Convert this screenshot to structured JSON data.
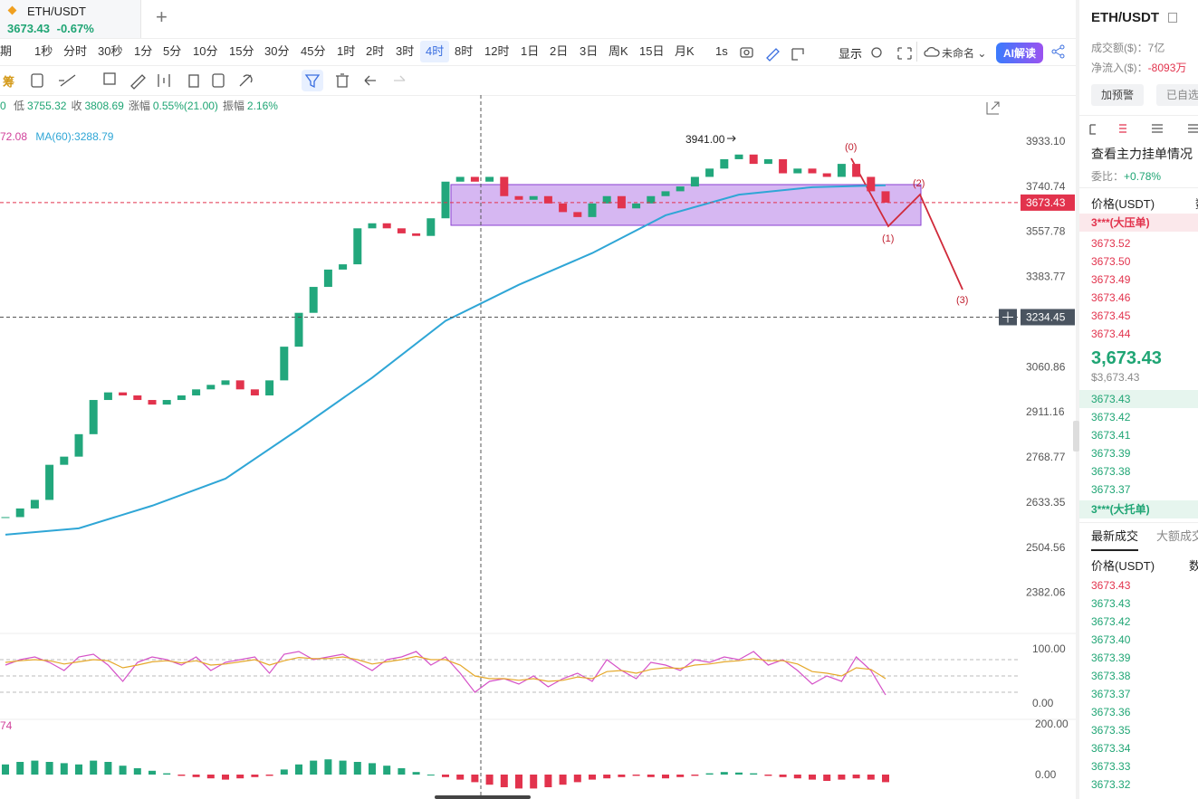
{
  "tab": {
    "symbol": "ETH/USDT",
    "price": "3673.43",
    "change": "-0.67%"
  },
  "intervals": [
    {
      "label": "期"
    },
    {
      "label": "1秒"
    },
    {
      "label": "分时"
    },
    {
      "label": "30秒"
    },
    {
      "label": "1分"
    },
    {
      "label": "5分"
    },
    {
      "label": "10分"
    },
    {
      "label": "15分"
    },
    {
      "label": "30分"
    },
    {
      "label": "45分"
    },
    {
      "label": "1时"
    },
    {
      "label": "2时"
    },
    {
      "label": "3时"
    },
    {
      "label": "4时",
      "selected": true
    },
    {
      "label": "8时"
    },
    {
      "label": "12时"
    },
    {
      "label": "1日"
    },
    {
      "label": "2日"
    },
    {
      "label": "3日"
    },
    {
      "label": "周K"
    },
    {
      "label": "15日"
    },
    {
      "label": "月K"
    },
    {
      "label": "1s"
    }
  ],
  "toolbar": {
    "display": "显示",
    "layout_name": "未命名",
    "ai": "AI解读",
    "chip": "筹"
  },
  "info": {
    "lead": "0",
    "items": [
      {
        "label": "低",
        "value": "3755.32"
      },
      {
        "label": "收",
        "value": "3808.69"
      },
      {
        "label": "涨幅",
        "value": "0.55%(21.00)"
      },
      {
        "label": "振幅",
        "value": "2.16%"
      }
    ],
    "ma_legend": [
      "72.08",
      "MA(60):3288.79"
    ]
  },
  "chart_data": [
    {
      "type": "candlestick",
      "log_scale": true,
      "ylim": [
        2276,
        4140
      ],
      "yticks": [
        {
          "value": 3933.1,
          "label": "3933.10"
        },
        3740.74,
        3557.78,
        3383.77,
        3060.86,
        2911.16,
        2768.77,
        2633.35,
        2504.56,
        2382.06
      ],
      "closes": [
        2590,
        2615,
        2640,
        2745,
        2770,
        2840,
        2950,
        2975,
        2965,
        2950,
        2935,
        2950,
        2965,
        2985,
        3000,
        3015,
        2985,
        2965,
        3015,
        3130,
        3250,
        3345,
        3410,
        3430,
        3570,
        3590,
        3570,
        3550,
        3540,
        3610,
        3760,
        3780,
        3760,
        3780,
        3700,
        3685,
        3700,
        3670,
        3635,
        3615,
        3670,
        3700,
        3650,
        3670,
        3700,
        3720,
        3740,
        3780,
        3815,
        3855,
        3875,
        3835,
        3855,
        3795,
        3815,
        3795,
        3780,
        3835,
        3780,
        3720,
        3673.43
      ],
      "up_color": "#22a77c",
      "down_color": "#e2334d",
      "ma_x": [
        0,
        5,
        10,
        15,
        20,
        25,
        30,
        35,
        40,
        45,
        50,
        55,
        60
      ],
      "ma_values": [
        2540,
        2558,
        2623,
        2703,
        2856,
        3024,
        3221,
        3353,
        3473,
        3622,
        3706,
        3737,
        3745
      ],
      "ma_color": "#2fa6d6",
      "last_price": 3673.43,
      "crosshair_price": 3234.45,
      "high_label": "3941.00",
      "wave_labels": [
        "(0)",
        "(1)",
        "(2)",
        "(3)"
      ]
    },
    {
      "type": "line",
      "ylim": [
        -30,
        120
      ],
      "yticks": [
        {
          "value": 100,
          "label": "100.00"
        },
        {
          "value": 0,
          "label": "0.00"
        }
      ],
      "levels": [
        80,
        50,
        20
      ],
      "series": [
        {
          "color": "#d552c8",
          "values": [
            70,
            80,
            85,
            75,
            60,
            85,
            90,
            70,
            40,
            75,
            85,
            80,
            70,
            85,
            60,
            75,
            80,
            85,
            55,
            90,
            95,
            80,
            85,
            90,
            75,
            60,
            80,
            85,
            95,
            70,
            85,
            55,
            20,
            40,
            45,
            35,
            50,
            30,
            45,
            55,
            40,
            80,
            60,
            45,
            75,
            70,
            60,
            80,
            75,
            85,
            80,
            95,
            70,
            80,
            60,
            35,
            50,
            40,
            85,
            60,
            15
          ]
        },
        {
          "color": "#e5a82a",
          "values": [
            75,
            78,
            80,
            78,
            72,
            76,
            80,
            78,
            65,
            70,
            76,
            78,
            74,
            78,
            70,
            72,
            76,
            80,
            70,
            78,
            84,
            82,
            82,
            85,
            80,
            72,
            76,
            80,
            86,
            80,
            80,
            70,
            50,
            45,
            45,
            42,
            45,
            40,
            42,
            48,
            45,
            58,
            60,
            55,
            62,
            65,
            64,
            70,
            72,
            76,
            78,
            82,
            78,
            78,
            72,
            58,
            55,
            50,
            65,
            62,
            45
          ]
        }
      ]
    },
    {
      "type": "bar",
      "ylim": [
        -50,
        200
      ],
      "yticks": [
        {
          "value": 200,
          "label": "200.00"
        },
        {
          "value": 0,
          "label": "0.00"
        }
      ],
      "param_label": "74",
      "values": [
        40,
        50,
        55,
        50,
        45,
        40,
        55,
        50,
        35,
        25,
        15,
        5,
        -5,
        -10,
        -15,
        -20,
        -15,
        -10,
        -5,
        20,
        40,
        55,
        60,
        55,
        50,
        45,
        35,
        25,
        10,
        0,
        -10,
        -20,
        -30,
        -40,
        -50,
        -55,
        -55,
        -50,
        -40,
        -30,
        -20,
        -15,
        -10,
        -5,
        -10,
        -15,
        -10,
        -5,
        5,
        10,
        8,
        5,
        -5,
        -10,
        -15,
        -20,
        -25,
        -20,
        -15,
        -20,
        -30
      ],
      "up_color": "#22a77c",
      "down_color": "#e2334d"
    }
  ],
  "panel": {
    "symbol": "ETH/USDT",
    "turnover_label": "成交额($)：",
    "turnover": "7亿",
    "inflow_label": "净流入($)：",
    "inflow": "-8093万",
    "buttons": [
      "加预警",
      "已自选"
    ],
    "depth_title": "查看主力挂单情况",
    "ratio_label": "委比：",
    "ratio": "+0.78%",
    "book_header": [
      "价格(USDT)",
      "数"
    ],
    "ask_wall": "3***(大压单)",
    "asks": [
      "3673.52",
      "3673.50",
      "3673.49",
      "3673.46",
      "3673.45",
      "3673.44"
    ],
    "mid_price": "3,673.43",
    "mid_usd": "$3,673.43",
    "bids": [
      "3673.43",
      "3673.42",
      "3673.41",
      "3673.39",
      "3673.38",
      "3673.37"
    ],
    "bid_wall": "3***(大托单)",
    "trade_tabs": [
      "最新成交",
      "大额成交"
    ],
    "trade_header": [
      "价格(USDT)",
      "数"
    ],
    "trades": [
      {
        "price": "3673.43",
        "side": "sell"
      },
      {
        "price": "3673.43",
        "side": "buy"
      },
      {
        "price": "3673.42",
        "side": "buy"
      },
      {
        "price": "3673.40",
        "side": "buy"
      },
      {
        "price": "3673.39",
        "side": "buy"
      },
      {
        "price": "3673.38",
        "side": "buy"
      },
      {
        "price": "3673.37",
        "side": "buy"
      },
      {
        "price": "3673.36",
        "side": "buy"
      },
      {
        "price": "3673.35",
        "side": "buy"
      },
      {
        "price": "3673.34",
        "side": "buy"
      },
      {
        "price": "3673.33",
        "side": "buy"
      },
      {
        "price": "3673.32",
        "side": "buy"
      }
    ]
  }
}
